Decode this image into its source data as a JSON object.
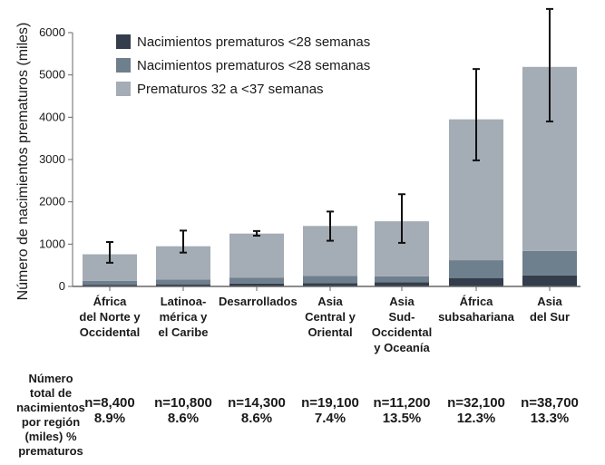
{
  "chart_data": {
    "type": "bar",
    "stacked": true,
    "ylabel": "Número de nacimientos prematuros (miles)",
    "ylim": [
      0,
      6000
    ],
    "yticks": [
      0,
      1000,
      2000,
      3000,
      4000,
      5000,
      6000
    ],
    "grid": false,
    "legend_position": "top-left",
    "categories": [
      "África\ndel Norte y\nOccidental",
      "Latinoa-\nmérica y\nel Caribe",
      "Desarrollados",
      "Asia\nCentral y\nOriental",
      "Asia\nSud-\nOccidental\ny Oceanía",
      "África\nsubsahariana",
      "Asia\ndel Sur"
    ],
    "series": [
      {
        "name": "Nacimientos prematuros <28 semanas",
        "color": "#333d4c",
        "values": [
          40,
          50,
          70,
          80,
          100,
          200,
          260
        ]
      },
      {
        "name": "Nacimientos prematuros <28 semanas",
        "color": "#6e7f8e",
        "values": [
          90,
          110,
          140,
          170,
          140,
          420,
          580
        ]
      },
      {
        "name": "Prematuros 32 a <37 semanas",
        "color": "#a4acb5",
        "values": [
          630,
          790,
          1040,
          1180,
          1300,
          3330,
          4350
        ]
      }
    ],
    "error_bars": [
      {
        "low": 560,
        "high": 1050
      },
      {
        "low": 800,
        "high": 1320
      },
      {
        "low": 1200,
        "high": 1310
      },
      {
        "low": 1080,
        "high": 1770
      },
      {
        "low": 1030,
        "high": 2180
      },
      {
        "low": 2980,
        "high": 5140
      },
      {
        "low": 3900,
        "high": 6560
      }
    ]
  },
  "footer": {
    "title": "Número\ntotal de\nnacimientos\npor región\n(miles) %\nprematuros",
    "cells": [
      {
        "n": "n=8,400",
        "pct": "8.9%"
      },
      {
        "n": "n=10,800",
        "pct": "8.6%"
      },
      {
        "n": "n=14,300",
        "pct": "8.6%"
      },
      {
        "n": "n=19,100",
        "pct": "7.4%"
      },
      {
        "n": "n=11,200",
        "pct": "13.5%"
      },
      {
        "n": "n=32,100",
        "pct": "12.3%"
      },
      {
        "n": "n=38,700",
        "pct": "13.3%"
      }
    ]
  }
}
